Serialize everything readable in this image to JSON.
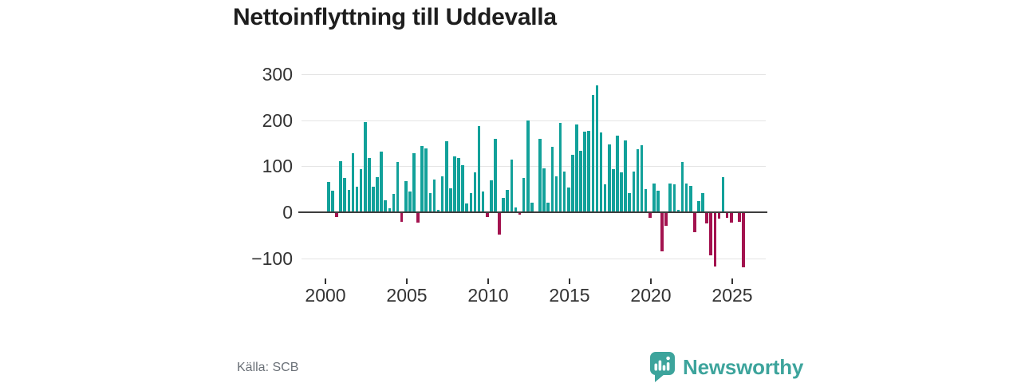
{
  "title": "Nettoinflyttning till Uddevalla",
  "source": "Källa: SCB",
  "brand": {
    "name": "Newsworthy"
  },
  "colors": {
    "positive_bar": "#12a19a",
    "negative_bar": "#a3134f",
    "grid": "#e4e4e4",
    "zero_line": "#3d3d3d",
    "axis_text": "#333333",
    "title_text": "#1e1e1e",
    "source_text": "#6a7077",
    "brand_teal": "#3da49c"
  },
  "chart_data": {
    "type": "bar",
    "title": "Nettoinflyttning till Uddevalla",
    "xlabel": "",
    "ylabel": "",
    "unit": "net migration per quarter",
    "period": "2000Q1–2025Q3",
    "x_ticks": [
      2000,
      2005,
      2010,
      2015,
      2020,
      2025
    ],
    "y_ticks": [
      300,
      200,
      100,
      0,
      -100
    ],
    "ylim": [
      -135,
      320
    ],
    "grid": "horizontal",
    "legend": "none",
    "series": [
      {
        "year": 2000,
        "values": [
          66,
          47,
          -10,
          111
        ]
      },
      {
        "year": 2001,
        "values": [
          75,
          49,
          128,
          56
        ]
      },
      {
        "year": 2002,
        "values": [
          94,
          195,
          118,
          55
        ]
      },
      {
        "year": 2003,
        "values": [
          77,
          131,
          26,
          9
        ]
      },
      {
        "year": 2004,
        "values": [
          40,
          110,
          -20,
          67
        ]
      },
      {
        "year": 2005,
        "values": [
          45,
          128,
          -22,
          143
        ]
      },
      {
        "year": 2006,
        "values": [
          139,
          41,
          71,
          5
        ]
      },
      {
        "year": 2007,
        "values": [
          78,
          155,
          52,
          122
        ]
      },
      {
        "year": 2008,
        "values": [
          118,
          103,
          19,
          41
        ]
      },
      {
        "year": 2009,
        "values": [
          87,
          188,
          45,
          -10
        ]
      },
      {
        "year": 2010,
        "values": [
          70,
          160,
          -48,
          31
        ]
      },
      {
        "year": 2011,
        "values": [
          48,
          114,
          10,
          -6
        ]
      },
      {
        "year": 2012,
        "values": [
          74,
          200,
          21,
          0
        ]
      },
      {
        "year": 2013,
        "values": [
          160,
          96,
          20,
          142
        ]
      },
      {
        "year": 2014,
        "values": [
          78,
          194,
          89,
          53
        ]
      },
      {
        "year": 2015,
        "values": [
          125,
          190,
          134,
          175
        ]
      },
      {
        "year": 2016,
        "values": [
          176,
          255,
          275,
          173
        ]
      },
      {
        "year": 2017,
        "values": [
          61,
          148,
          93,
          166
        ]
      },
      {
        "year": 2018,
        "values": [
          86,
          156,
          42,
          88
        ]
      },
      {
        "year": 2019,
        "values": [
          137,
          146,
          50,
          -12
        ]
      },
      {
        "year": 2020,
        "values": [
          62,
          46,
          -85,
          -29
        ]
      },
      {
        "year": 2021,
        "values": [
          62,
          61,
          5,
          110
        ]
      },
      {
        "year": 2022,
        "values": [
          62,
          57,
          -44,
          25
        ]
      },
      {
        "year": 2023,
        "values": [
          42,
          -25,
          -94,
          -118
        ]
      },
      {
        "year": 2024,
        "values": [
          -14,
          77,
          -12,
          -22
        ]
      },
      {
        "year": 2025,
        "values": [
          0,
          -20,
          -120
        ]
      }
    ]
  }
}
